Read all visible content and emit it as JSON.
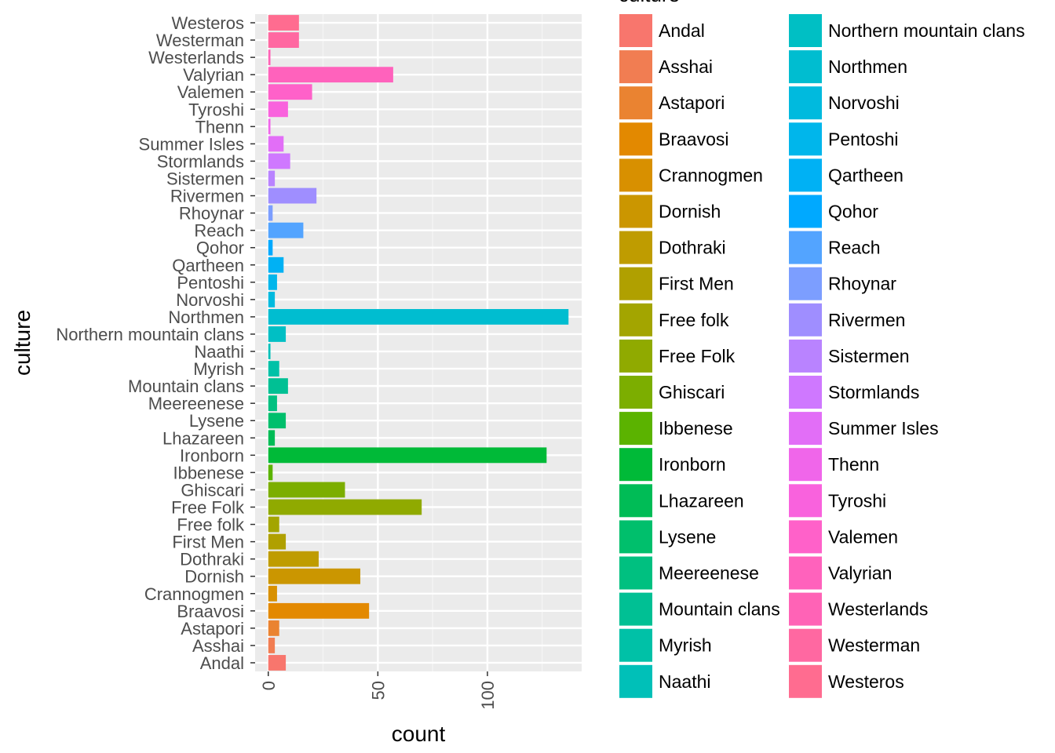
{
  "chart_data": {
    "type": "bar",
    "orientation": "horizontal",
    "xlabel": "count",
    "ylabel": "culture",
    "xlim": [
      -6,
      143
    ],
    "xticks": [
      0,
      50,
      100
    ],
    "grid": true,
    "legend": {
      "title": "culture",
      "placement": "right",
      "columns": 2
    },
    "categories": [
      "Andal",
      "Asshai",
      "Astapori",
      "Braavosi",
      "Crannogmen",
      "Dornish",
      "Dothraki",
      "First Men",
      "Free folk",
      "Free Folk",
      "Ghiscari",
      "Ibbenese",
      "Ironborn",
      "Lhazareen",
      "Lysene",
      "Meereenese",
      "Mountain clans",
      "Myrish",
      "Naathi",
      "Northern mountain clans",
      "Northmen",
      "Norvoshi",
      "Pentoshi",
      "Qartheen",
      "Qohor",
      "Reach",
      "Rhoynar",
      "Rivermen",
      "Sistermen",
      "Stormlands",
      "Summer Isles",
      "Thenn",
      "Tyroshi",
      "Valemen",
      "Valyrian",
      "Westerlands",
      "Westerman",
      "Westeros"
    ],
    "values": [
      8,
      3,
      5,
      46,
      4,
      42,
      23,
      8,
      5,
      70,
      35,
      2,
      127,
      3,
      8,
      4,
      9,
      5,
      1,
      8,
      137,
      3,
      4,
      7,
      2,
      16,
      2,
      22,
      3,
      10,
      7,
      1,
      9,
      20,
      57,
      1,
      14,
      14
    ],
    "colors": [
      "#F8766D",
      "#F17D52",
      "#EA8331",
      "#E38900",
      "#D89000",
      "#CB9600",
      "#BF9C00",
      "#B0A000",
      "#A3A500",
      "#90AA00",
      "#7CAE00",
      "#5BB300",
      "#00BA38",
      "#00BC56",
      "#00BF6C",
      "#00C080",
      "#00C094",
      "#00C1A7",
      "#00C0B8",
      "#00BFC4",
      "#00BDD0",
      "#00BADE",
      "#00B6EB",
      "#00B1F4",
      "#00A9FF",
      "#53A4FF",
      "#7C9EFF",
      "#9F8EFF",
      "#B983FF",
      "#CF78FF",
      "#E26EF7",
      "#F066EA",
      "#F962DD",
      "#FF61C9",
      "#FF62BC",
      "#FF63B6",
      "#FF68A1",
      "#FF6C90"
    ]
  }
}
